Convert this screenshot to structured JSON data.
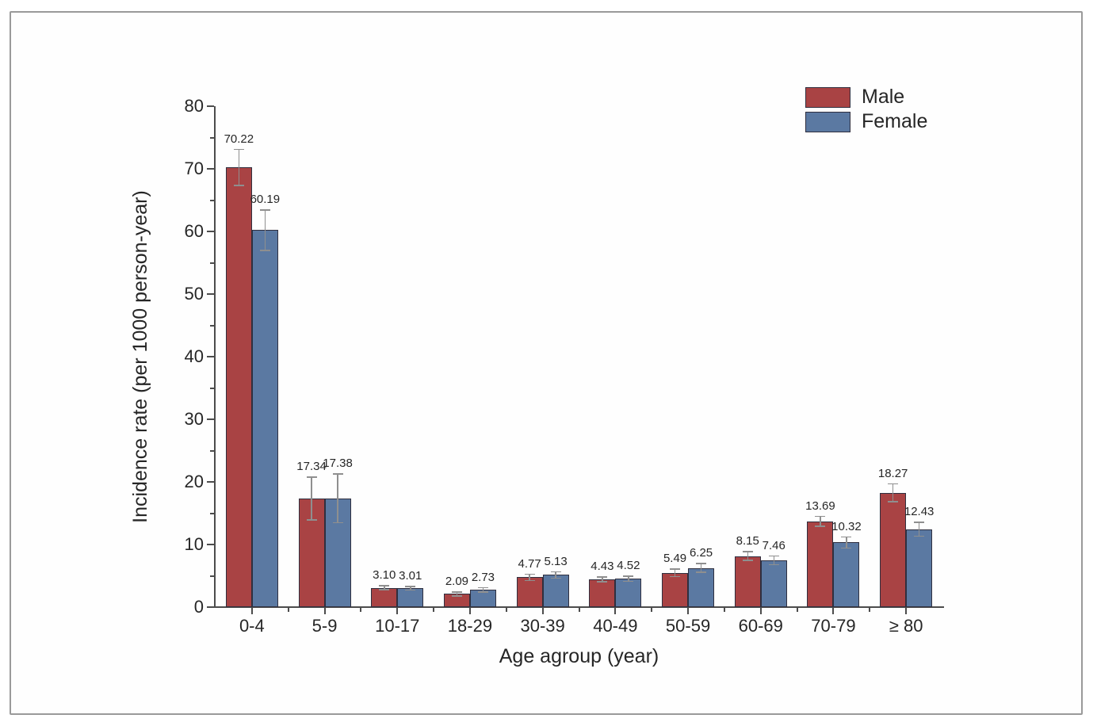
{
  "chart_data": {
    "type": "bar",
    "title": "",
    "xlabel": "Age agroup (year)",
    "ylabel": "Incidence rate (per 1000 person-year)",
    "categories": [
      "0-4",
      "5-9",
      "10-17",
      "18-29",
      "30-39",
      "40-49",
      "50-59",
      "60-69",
      "70-79",
      "≥ 80"
    ],
    "series": [
      {
        "name": "Male",
        "color": "#a94344",
        "values": [
          70.22,
          17.34,
          3.1,
          2.09,
          4.77,
          4.43,
          5.49,
          8.15,
          13.69,
          18.27
        ],
        "errors": [
          3.0,
          3.5,
          0.4,
          0.4,
          0.6,
          0.5,
          0.7,
          0.8,
          0.9,
          1.5
        ]
      },
      {
        "name": "Female",
        "color": "#5b79a2",
        "values": [
          60.19,
          17.38,
          3.01,
          2.73,
          5.13,
          4.52,
          6.25,
          7.46,
          10.32,
          12.43
        ],
        "errors": [
          3.3,
          4.0,
          0.4,
          0.45,
          0.6,
          0.5,
          0.8,
          0.8,
          1.0,
          1.2
        ]
      }
    ],
    "ylim": [
      0,
      80
    ],
    "ytick_step": 10,
    "yminor_step": 5,
    "yticks": [
      0,
      10,
      20,
      30,
      40,
      50,
      60,
      70,
      80
    ],
    "value_label_decimals": 2,
    "legend_position": "top-right",
    "grid": false,
    "colors": {
      "bar_border": "#2f2f3f",
      "error_bar": "#8f8f8f",
      "axis": "#4c4c4c",
      "text": "#262626",
      "frame_border": "#9a9a9a",
      "background": "#ffffff"
    }
  }
}
